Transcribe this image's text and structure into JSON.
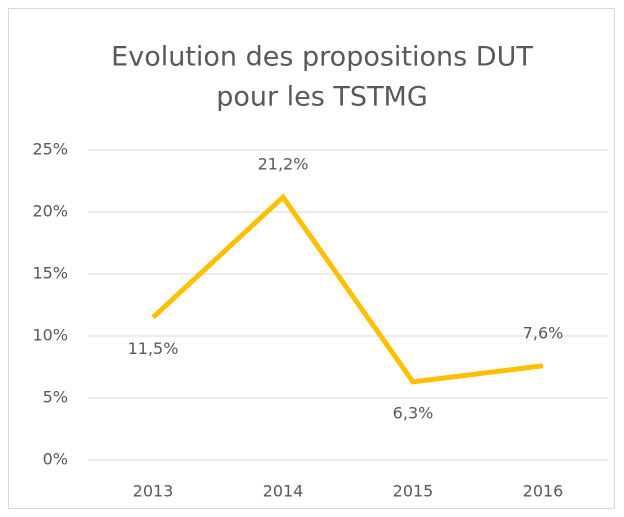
{
  "chart_data": {
    "type": "line",
    "title": [
      "Evolution des propositions DUT",
      "pour les TSTMG"
    ],
    "categories": [
      "2013",
      "2014",
      "2015",
      "2016"
    ],
    "series": [
      {
        "name": "DUT",
        "color": "#ffc000",
        "values": [
          11.5,
          21.2,
          6.3,
          7.6
        ],
        "value_labels": [
          "11,5%",
          "21,2%",
          "6,3%",
          "7,6%"
        ]
      }
    ],
    "ylim": [
      0,
      25
    ],
    "yticks": [
      {
        "value": 0,
        "label": "0%"
      },
      {
        "value": 5,
        "label": "5%"
      },
      {
        "value": 10,
        "label": "10%"
      },
      {
        "value": 15,
        "label": "15%"
      },
      {
        "value": 20,
        "label": "20%"
      },
      {
        "value": 25,
        "label": "25%"
      }
    ],
    "grid": true
  }
}
